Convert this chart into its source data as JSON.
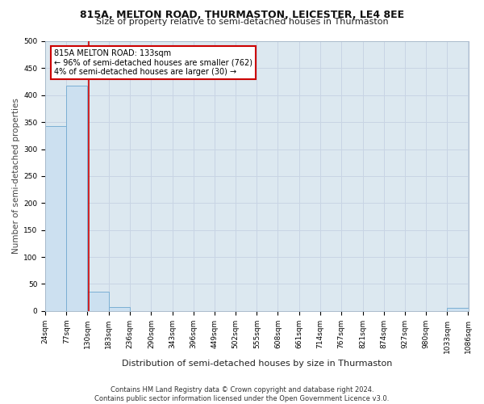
{
  "title": "815A, MELTON ROAD, THURMASTON, LEICESTER, LE4 8EE",
  "subtitle": "Size of property relative to semi-detached houses in Thurmaston",
  "xlabel_bottom": "Distribution of semi-detached houses by size in Thurmaston",
  "ylabel": "Number of semi-detached properties",
  "footer_line1": "Contains HM Land Registry data © Crown copyright and database right 2024.",
  "footer_line2": "Contains public sector information licensed under the Open Government Licence v3.0.",
  "bin_edges": [
    24,
    77,
    130,
    183,
    236,
    290,
    343,
    396,
    449,
    502,
    555,
    608,
    661,
    714,
    767,
    821,
    874,
    927,
    980,
    1033,
    1086
  ],
  "bin_counts": [
    343,
    418,
    35,
    7,
    0,
    0,
    0,
    0,
    0,
    0,
    0,
    0,
    0,
    0,
    0,
    0,
    0,
    0,
    0,
    6
  ],
  "bar_color": "#cce0f0",
  "bar_edge_color": "#7bafd4",
  "property_size": 133,
  "property_label": "815A MELTON ROAD: 133sqm",
  "annotation_line1": "← 96% of semi-detached houses are smaller (762)",
  "annotation_line2": "4% of semi-detached houses are larger (30) →",
  "annotation_box_facecolor": "#ffffff",
  "annotation_box_edgecolor": "#cc0000",
  "vline_color": "#cc0000",
  "grid_color": "#c8d4e4",
  "plot_bg_color": "#dce8f0",
  "fig_bg_color": "#ffffff",
  "ylim": [
    0,
    500
  ],
  "yticks": [
    0,
    50,
    100,
    150,
    200,
    250,
    300,
    350,
    400,
    450,
    500
  ],
  "title_fontsize": 9,
  "subtitle_fontsize": 8,
  "ylabel_fontsize": 7.5,
  "xlabel_fontsize": 8,
  "tick_fontsize": 6.5,
  "footer_fontsize": 6
}
